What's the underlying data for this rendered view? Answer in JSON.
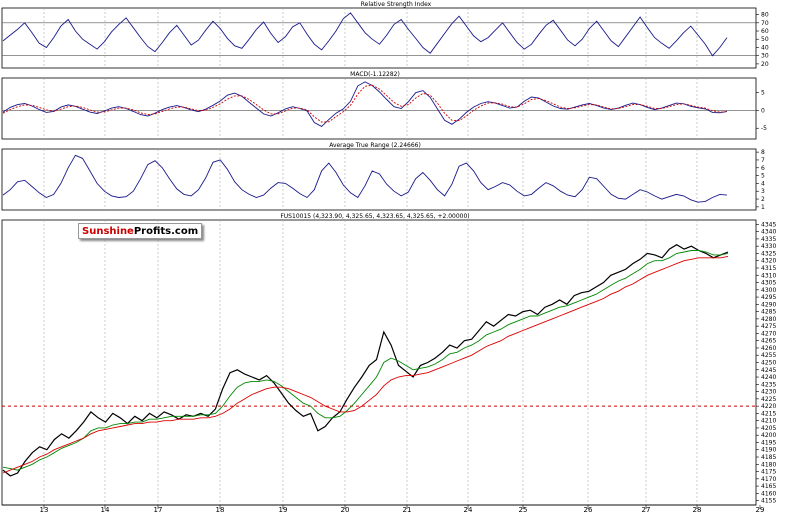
{
  "logo": {
    "part1": "Sunshine",
    "part2": "Profits.com"
  },
  "chart_data": [
    {
      "type": "line",
      "title": "Relative Strength Index",
      "series": [
        {
          "values": [
            48,
            55,
            62,
            70,
            58,
            45,
            40,
            52,
            66,
            74,
            60,
            50,
            44,
            38,
            47,
            59,
            68,
            76,
            64,
            52,
            41,
            35,
            46,
            58,
            67,
            55,
            43,
            49,
            61,
            72,
            63,
            51,
            42,
            39,
            50,
            62,
            71,
            57,
            46,
            53,
            65,
            70,
            56,
            44,
            37,
            48,
            60,
            75,
            82,
            70,
            58,
            50,
            44,
            55,
            68,
            74,
            62,
            51,
            40,
            33,
            45,
            57,
            69,
            78,
            66,
            54,
            47,
            52,
            61,
            70,
            58,
            46,
            38,
            44,
            56,
            67,
            73,
            61,
            49,
            42,
            50,
            63,
            72,
            60,
            48,
            41,
            53,
            65,
            77,
            64,
            52,
            45,
            39,
            48,
            58,
            66,
            55,
            44,
            30,
            40,
            52
          ]
        }
      ],
      "yticks": [
        20,
        30,
        40,
        50,
        60,
        70,
        80
      ],
      "hlines": [
        30,
        70
      ],
      "ylim": [
        15,
        88
      ]
    },
    {
      "type": "line",
      "title": "MACD(-1.12282)",
      "series": [
        {
          "values": [
            -0.5,
            0.8,
            1.6,
            1.9,
            1.2,
            0.2,
            -0.6,
            -0.3,
            0.9,
            1.5,
            1.1,
            0.3,
            -0.5,
            -0.9,
            -0.2,
            0.6,
            1.0,
            0.5,
            -0.3,
            -1.2,
            -1.6,
            -0.8,
            0.2,
            0.9,
            1.3,
            0.8,
            0.1,
            -0.4,
            0.3,
            1.4,
            2.6,
            4.2,
            4.8,
            3.9,
            2.2,
            0.6,
            -1.0,
            -1.6,
            -0.7,
            0.4,
            1.0,
            0.5,
            -0.2,
            -3.4,
            -4.5,
            -2.6,
            -0.8,
            0.4,
            2.5,
            6.8,
            7.9,
            6.9,
            5.1,
            3.0,
            1.0,
            0.5,
            2.4,
            4.9,
            5.5,
            3.6,
            0.4,
            -2.8,
            -3.9,
            -2.5,
            -0.6,
            0.9,
            1.9,
            2.4,
            2.0,
            1.3,
            0.6,
            0.9,
            2.5,
            3.7,
            3.4,
            2.3,
            1.2,
            0.5,
            0.3,
            0.9,
            1.5,
            1.9,
            1.3,
            0.6,
            0.2,
            0.6,
            1.4,
            2.0,
            1.6,
            0.8,
            0.2,
            0.6,
            1.3,
            2.0,
            1.8,
            1.1,
            0.7,
            0.4,
            -0.6,
            -0.7,
            -0.3
          ]
        },
        {
          "values": [
            -0.8,
            0.2,
            1.0,
            1.5,
            1.4,
            0.8,
            0.1,
            -0.3,
            0.3,
            1.0,
            1.2,
            0.8,
            0.1,
            -0.5,
            -0.5,
            0.1,
            0.6,
            0.6,
            0.1,
            -0.7,
            -1.2,
            -1.0,
            -0.3,
            0.4,
            0.9,
            0.9,
            0.4,
            -0.1,
            0.0,
            0.8,
            1.8,
            3.1,
            4.0,
            4.0,
            3.0,
            1.6,
            0.1,
            -1.0,
            -1.0,
            -0.2,
            0.6,
            0.6,
            0.1,
            -1.8,
            -3.3,
            -3.2,
            -1.8,
            -0.4,
            1.4,
            4.5,
            6.7,
            7.0,
            5.9,
            4.1,
            2.2,
            1.1,
            1.6,
            3.4,
            4.7,
            4.2,
            2.0,
            -0.8,
            -2.8,
            -2.9,
            -1.6,
            0.0,
            1.2,
            2.0,
            2.1,
            1.7,
            1.0,
            0.9,
            1.8,
            3.0,
            3.3,
            2.7,
            1.8,
            0.9,
            0.5,
            0.7,
            1.2,
            1.6,
            1.5,
            0.9,
            0.4,
            0.5,
            1.0,
            1.6,
            1.6,
            1.1,
            0.5,
            0.5,
            1.0,
            1.6,
            1.8,
            1.4,
            0.9,
            0.6,
            -0.1,
            -0.5,
            -0.4
          ]
        }
      ],
      "yticks": [
        -5,
        0,
        5
      ],
      "hlines": [
        0
      ],
      "ylim": [
        -8,
        9
      ]
    },
    {
      "type": "line",
      "title": "Average True Range (2.24666)",
      "series": [
        {
          "values": [
            2.5,
            3.2,
            4.2,
            4.4,
            3.6,
            2.8,
            2.2,
            2.6,
            4.0,
            6.0,
            7.6,
            7.2,
            5.6,
            4.0,
            3.0,
            2.4,
            2.2,
            2.3,
            3.0,
            4.6,
            6.4,
            6.9,
            6.0,
            4.6,
            3.3,
            2.6,
            2.4,
            3.2,
            4.7,
            6.7,
            7.0,
            5.8,
            4.2,
            3.2,
            2.6,
            2.2,
            2.5,
            3.4,
            4.1,
            4.0,
            3.4,
            2.7,
            2.2,
            3.2,
            5.6,
            6.6,
            5.4,
            3.8,
            2.8,
            2.2,
            3.7,
            5.6,
            5.2,
            3.9,
            3.0,
            2.4,
            2.9,
            4.6,
            5.4,
            4.4,
            3.2,
            2.4,
            3.9,
            6.2,
            6.6,
            5.6,
            4.1,
            3.2,
            3.6,
            4.1,
            3.8,
            3.0,
            2.4,
            2.6,
            3.4,
            4.1,
            3.7,
            3.0,
            2.5,
            2.3,
            3.2,
            4.8,
            4.6,
            3.6,
            2.6,
            2.1,
            2.0,
            2.6,
            3.2,
            2.9,
            2.4,
            2.0,
            2.3,
            2.6,
            2.4,
            1.9,
            1.6,
            1.7,
            2.2,
            2.6,
            2.5
          ]
        }
      ],
      "yticks": [
        1,
        2,
        3,
        4,
        5,
        6,
        7,
        8
      ],
      "hlines": [],
      "ylim": [
        0.6,
        8.4
      ]
    },
    {
      "type": "line",
      "title": "FUS10015 (4,323.90, 4,325.65, 4,323.65, 4,325.65, +2.00000)",
      "x_labels": [
        "13",
        "14",
        "17",
        "18",
        "19",
        "20",
        "21",
        "24",
        "25",
        "26",
        "27",
        "28",
        "29"
      ],
      "series": [
        {
          "values": [
            4176,
            4172,
            4174,
            4182,
            4188,
            4192,
            4190,
            4197,
            4201,
            4198,
            4203,
            4209,
            4216,
            4212,
            4209,
            4215,
            4212,
            4208,
            4213,
            4210,
            4215,
            4212,
            4216,
            4214,
            4211,
            4214,
            4213,
            4215,
            4213,
            4218,
            4232,
            4243,
            4245,
            4242,
            4240,
            4238,
            4241,
            4236,
            4229,
            4222,
            4217,
            4213,
            4215,
            4203,
            4206,
            4212,
            4216,
            4225,
            4233,
            4240,
            4248,
            4252,
            4271,
            4262,
            4248,
            4244,
            4240,
            4248,
            4250,
            4253,
            4257,
            4262,
            4260,
            4265,
            4266,
            4272,
            4278,
            4275,
            4279,
            4283,
            4282,
            4285,
            4286,
            4283,
            4288,
            4290,
            4293,
            4290,
            4296,
            4298,
            4299,
            4302,
            4305,
            4310,
            4312,
            4314,
            4318,
            4321,
            4325,
            4324,
            4322,
            4328,
            4331,
            4328,
            4330,
            4327,
            4325,
            4322,
            4324,
            4326
          ]
        },
        {
          "values": [
            4178,
            4177,
            4176,
            4178,
            4180,
            4183,
            4185,
            4188,
            4191,
            4193,
            4195,
            4198,
            4203,
            4205,
            4205,
            4207,
            4208,
            4208,
            4209,
            4209,
            4211,
            4211,
            4212,
            4213,
            4213,
            4213,
            4213,
            4214,
            4214,
            4215,
            4220,
            4227,
            4233,
            4236,
            4237,
            4237,
            4238,
            4237,
            4234,
            4230,
            4226,
            4222,
            4220,
            4215,
            4212,
            4212,
            4213,
            4217,
            4222,
            4228,
            4234,
            4240,
            4250,
            4253,
            4251,
            4248,
            4245,
            4246,
            4247,
            4249,
            4252,
            4256,
            4257,
            4260,
            4262,
            4265,
            4269,
            4271,
            4273,
            4276,
            4278,
            4280,
            4282,
            4282,
            4284,
            4286,
            4288,
            4289,
            4291,
            4293,
            4295,
            4297,
            4300,
            4303,
            4306,
            4308,
            4311,
            4314,
            4318,
            4320,
            4320,
            4322,
            4325,
            4326,
            4327,
            4327,
            4326,
            4324,
            4324,
            4325
          ]
        },
        {
          "values": [
            4174,
            4176,
            4178,
            4180,
            4182,
            4185,
            4187,
            4190,
            4192,
            4194,
            4196,
            4198,
            4201,
            4203,
            4204,
            4205,
            4206,
            4207,
            4208,
            4208,
            4209,
            4209,
            4210,
            4210,
            4211,
            4211,
            4211,
            4212,
            4212,
            4213,
            4215,
            4218,
            4222,
            4225,
            4228,
            4230,
            4232,
            4233,
            4233,
            4232,
            4230,
            4228,
            4226,
            4223,
            4220,
            4218,
            4216,
            4216,
            4217,
            4220,
            4224,
            4228,
            4234,
            4238,
            4240,
            4241,
            4241,
            4242,
            4243,
            4245,
            4247,
            4249,
            4251,
            4253,
            4255,
            4258,
            4261,
            4263,
            4265,
            4268,
            4270,
            4272,
            4274,
            4276,
            4278,
            4280,
            4282,
            4284,
            4286,
            4288,
            4290,
            4292,
            4294,
            4297,
            4299,
            4302,
            4304,
            4307,
            4310,
            4312,
            4314,
            4316,
            4318,
            4320,
            4321,
            4322,
            4322,
            4322,
            4322,
            4323
          ]
        }
      ],
      "yticks": [
        4155,
        4160,
        4165,
        4170,
        4175,
        4180,
        4185,
        4190,
        4195,
        4200,
        4205,
        4210,
        4215,
        4220,
        4225,
        4230,
        4235,
        4240,
        4245,
        4250,
        4255,
        4260,
        4265,
        4270,
        4275,
        4280,
        4285,
        4290,
        4295,
        4300,
        4305,
        4310,
        4315,
        4320,
        4325,
        4330,
        4335,
        4340,
        4345
      ],
      "hlines": [
        4220
      ],
      "ylim": [
        4152,
        4348
      ]
    }
  ],
  "colors": {
    "rsi": "#1a1a8c",
    "macd": "#1a1a8c",
    "signal": "#cc0000",
    "atr": "#1a1a8c",
    "price": "#000000",
    "ema_fast": "#008800",
    "ema_slow": "#dd0000",
    "grid": "#aaaaaa",
    "hline": "#cc0000"
  }
}
